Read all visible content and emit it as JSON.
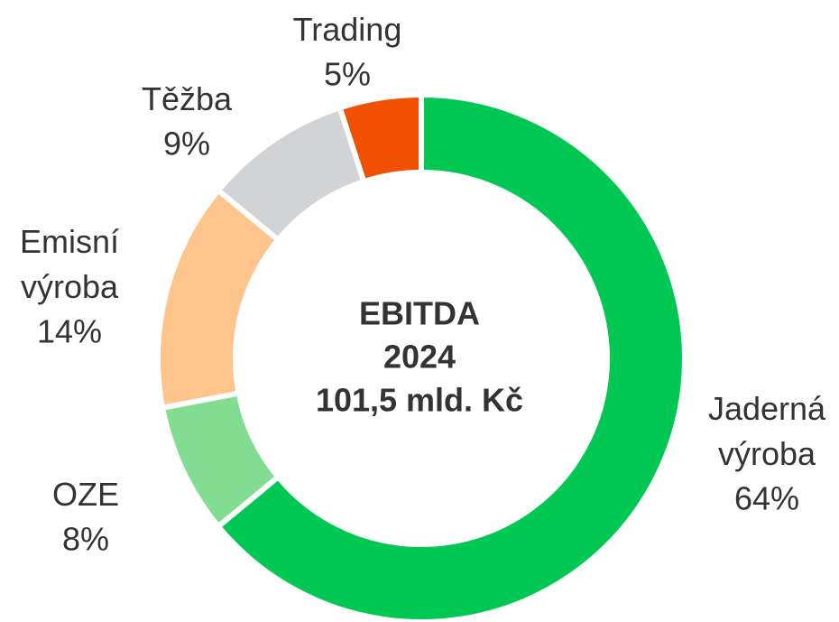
{
  "chart_data": {
    "type": "donut",
    "title": [
      "EBITDA",
      "2024",
      "101,5 mld. Kč"
    ],
    "categories": [
      "Jaderná výroba",
      "OZE",
      "Emisní výroba",
      "Těžba",
      "Trading"
    ],
    "values": [
      64,
      8,
      14,
      9,
      5
    ],
    "value_labels": [
      "64%",
      "8%",
      "14%",
      "9%",
      "5%"
    ],
    "colors": [
      "#00c853",
      "#82dc91",
      "#ffc48c",
      "#d1d3d4",
      "#f05000"
    ]
  }
}
